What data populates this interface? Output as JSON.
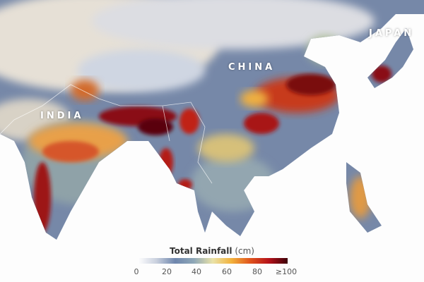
{
  "map": {
    "labels": {
      "china": "CHINA",
      "india": "INDIA",
      "japan": "JAPAN"
    }
  },
  "legend": {
    "title": "Total Rainfall",
    "unit": "(cm)",
    "ticks": [
      "0",
      "20",
      "40",
      "60",
      "80",
      "≥100"
    ],
    "range": [
      0,
      100
    ],
    "colors": [
      "#ffffff",
      "#c9d0de",
      "#6e86ad",
      "#8fa8b8",
      "#e9e2a8",
      "#f2b23c",
      "#e0541c",
      "#b5121a",
      "#3d0008"
    ]
  }
}
